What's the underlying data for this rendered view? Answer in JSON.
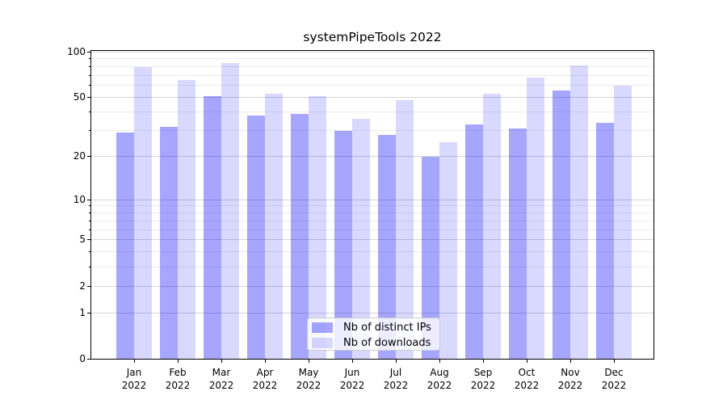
{
  "chart_data": {
    "type": "bar",
    "title": "systemPipeTools 2022",
    "categories": [
      "Jan",
      "Feb",
      "Mar",
      "Apr",
      "May",
      "Jun",
      "Jul",
      "Aug",
      "Sep",
      "Oct",
      "Nov",
      "Dec"
    ],
    "xtick_year": "2022",
    "series": [
      {
        "name": "Nb of distinct IPs",
        "fill_rgba": "rgba(0,0,255,0.35)",
        "color_on_white": "#a6a6ff",
        "values": [
          29,
          32,
          51,
          38,
          39,
          30,
          28,
          20,
          33,
          31,
          56,
          34
        ]
      },
      {
        "name": "Nb of downloads",
        "fill_rgba": "rgba(0,0,255,0.15)",
        "color_on_white": "#d9d9ff",
        "values": [
          80,
          65,
          85,
          53,
          51,
          36,
          48,
          25,
          53,
          68,
          82,
          60
        ]
      }
    ],
    "yscale": "log1p",
    "ylim": [
      0,
      103
    ],
    "yticks": [
      0,
      1,
      2,
      5,
      10,
      20,
      50,
      100
    ],
    "minor_gridlines": [
      3,
      4,
      6,
      7,
      8,
      9,
      30,
      40,
      60,
      70,
      80,
      90
    ],
    "grid": true,
    "legend_position": "lower center",
    "style": {
      "background": "#ffffff",
      "axis_color": "#000000",
      "grid_major_color": "#d4d4d4",
      "grid_minor_color": "#ececec",
      "text_color": "#000000"
    }
  }
}
